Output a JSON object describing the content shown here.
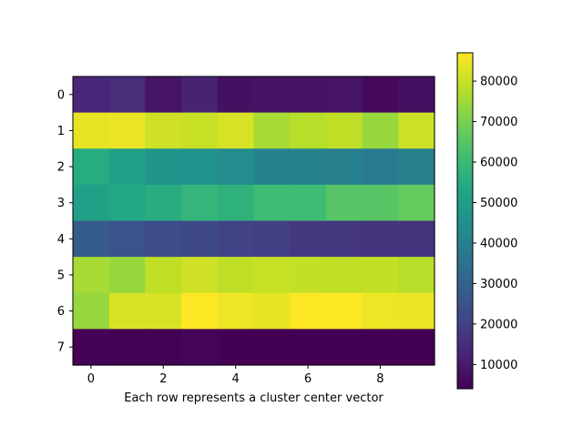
{
  "chart_data": {
    "type": "heatmap",
    "title": "",
    "xlabel": "Each row represents a cluster center vector",
    "ylabel": "",
    "x": [
      0,
      1,
      2,
      3,
      4,
      5,
      6,
      7,
      8,
      9
    ],
    "y": [
      0,
      1,
      2,
      3,
      4,
      5,
      6,
      7
    ],
    "x_ticks": [
      "0",
      "2",
      "4",
      "6",
      "8"
    ],
    "y_ticks": [
      "0",
      "1",
      "2",
      "3",
      "4",
      "5",
      "6",
      "7"
    ],
    "colormap": "viridis",
    "vmin": 4000,
    "vmax": 87000,
    "colorbar_ticks": [
      "10000",
      "20000",
      "30000",
      "40000",
      "50000",
      "60000",
      "70000",
      "80000"
    ],
    "values": [
      [
        13000,
        15000,
        8500,
        12000,
        7500,
        8000,
        8000,
        8500,
        6000,
        7500
      ],
      [
        84000,
        84500,
        81000,
        80000,
        82000,
        76000,
        78000,
        79000,
        74000,
        80500
      ],
      [
        55000,
        51000,
        47000,
        46000,
        44000,
        41000,
        41000,
        39500,
        38000,
        40000
      ],
      [
        51000,
        53500,
        55500,
        58500,
        57000,
        61000,
        61000,
        65000,
        65000,
        67000
      ],
      [
        28000,
        25500,
        23000,
        22000,
        20000,
        19500,
        17500,
        17000,
        16500,
        16500
      ],
      [
        76000,
        74000,
        79000,
        81000,
        79000,
        80000,
        79500,
        79000,
        79500,
        78000
      ],
      [
        74000,
        82000,
        82000,
        87000,
        85000,
        84000,
        87000,
        87000,
        85000,
        84500
      ],
      [
        4500,
        4300,
        4300,
        5000,
        4000,
        4000,
        4000,
        4000,
        4000,
        4000
      ]
    ]
  }
}
